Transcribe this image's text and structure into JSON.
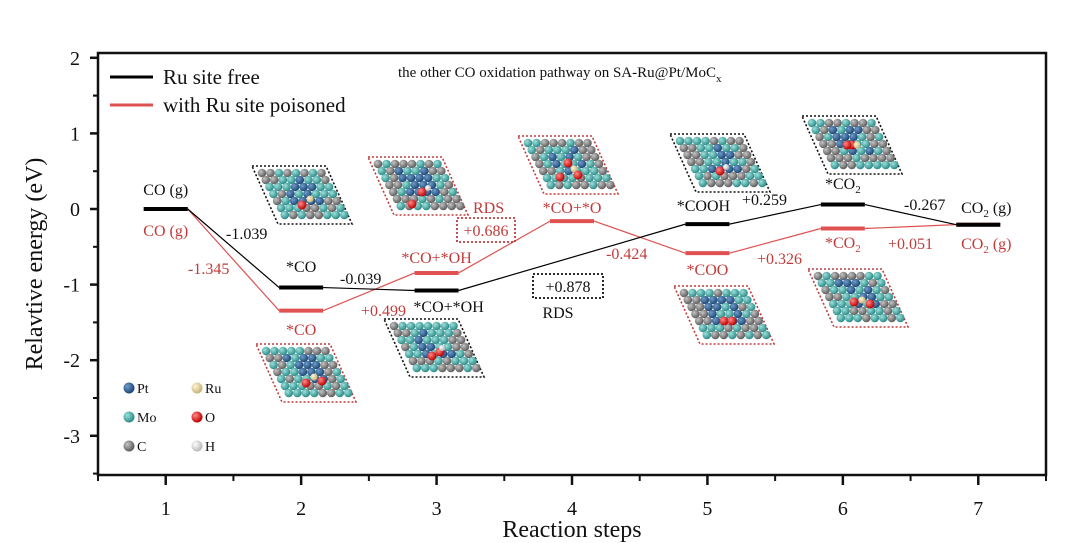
{
  "chart_data": {
    "type": "line",
    "subtype": "energy-profile",
    "title": "the other CO oxidation pathway on SA-Ru@Pt/MoC",
    "title_subscript": "x",
    "xlabel": "Reaction steps",
    "ylabel": "Relavtive energy (eV)",
    "xlim": [
      0.5,
      7.5
    ],
    "ylim": [
      -3.5,
      2
    ],
    "xticks": [
      1,
      2,
      3,
      4,
      5,
      6,
      7
    ],
    "yticks": [
      -3,
      -2,
      -1,
      0,
      1,
      2
    ],
    "grid": false,
    "legend_position": "top-left",
    "series": [
      {
        "name": "Ru site free",
        "color": "#000000",
        "x": [
          1,
          2,
          3,
          5,
          6,
          7
        ],
        "values": [
          0,
          -1.039,
          -1.078,
          -0.2,
          0.059,
          -0.208
        ],
        "state_labels": [
          "CO (g)",
          "*CO",
          "*CO+*OH",
          "*COOH",
          "*CO2",
          "CO2 (g)"
        ],
        "step_labels": [
          "-1.039",
          "-0.039",
          "+0.878",
          "+0.259",
          "-0.267"
        ]
      },
      {
        "name": "with Ru site poisoned",
        "color": "#e05252",
        "x": [
          1,
          2,
          3,
          4,
          5,
          6,
          7
        ],
        "values": [
          0,
          -1.345,
          -0.846,
          -0.16,
          -0.584,
          -0.258,
          -0.207
        ],
        "state_labels": [
          "CO (g)",
          "*CO",
          "*CO+*OH",
          "*CO+*O",
          "*COO",
          "*CO2",
          "CO2 (g)"
        ],
        "step_labels": [
          "-1.345",
          "+0.499",
          "+0.686",
          "-0.424",
          "+0.326",
          "+0.051"
        ]
      }
    ],
    "annotations": [
      {
        "text": "RDS",
        "series": "with Ru site poisoned",
        "value": "+0.686"
      },
      {
        "text": "RDS",
        "series": "Ru site free",
        "value": "+0.878"
      }
    ],
    "element_legend": [
      {
        "symbol": "Pt",
        "color": "#2b5d8c"
      },
      {
        "symbol": "Ru",
        "color": "#e8d9a0"
      },
      {
        "symbol": "Mo",
        "color": "#4fb3b0"
      },
      {
        "symbol": "O",
        "color": "#e01010"
      },
      {
        "symbol": "C",
        "color": "#808080"
      },
      {
        "symbol": "H",
        "color": "#e0e0e0"
      }
    ]
  }
}
